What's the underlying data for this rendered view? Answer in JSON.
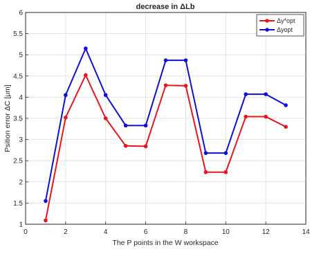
{
  "chart_data": {
    "type": "line",
    "title": "decrease in ΔLb",
    "xlabel": "The P points in the W workspace",
    "ylabel": "Psition error ΔC [μm]",
    "xlim": [
      0,
      14
    ],
    "ylim": [
      1,
      6
    ],
    "xticks": [
      "0",
      "2",
      "4",
      "6",
      "8",
      "10",
      "12",
      "14"
    ],
    "yticks": [
      "1",
      "1.5",
      "2",
      "2.5",
      "3",
      "3.5",
      "4",
      "4.5",
      "5",
      "5.5",
      "6"
    ],
    "grid": true,
    "legend_position": "top-right",
    "x": [
      1,
      2,
      3,
      4,
      5,
      6,
      7,
      8,
      9,
      10,
      11,
      12,
      13
    ],
    "series": [
      {
        "name": "Δy*opt",
        "color": "#e8141c",
        "values": [
          1.09,
          3.52,
          4.52,
          3.5,
          2.85,
          2.84,
          4.28,
          4.27,
          2.23,
          2.23,
          3.54,
          3.54,
          3.3
        ]
      },
      {
        "name": "Δyopt",
        "color": "#0d0ed6",
        "values": [
          1.55,
          4.05,
          5.15,
          4.05,
          3.33,
          3.33,
          4.87,
          4.87,
          2.68,
          2.68,
          4.07,
          4.07,
          3.81
        ]
      }
    ]
  }
}
